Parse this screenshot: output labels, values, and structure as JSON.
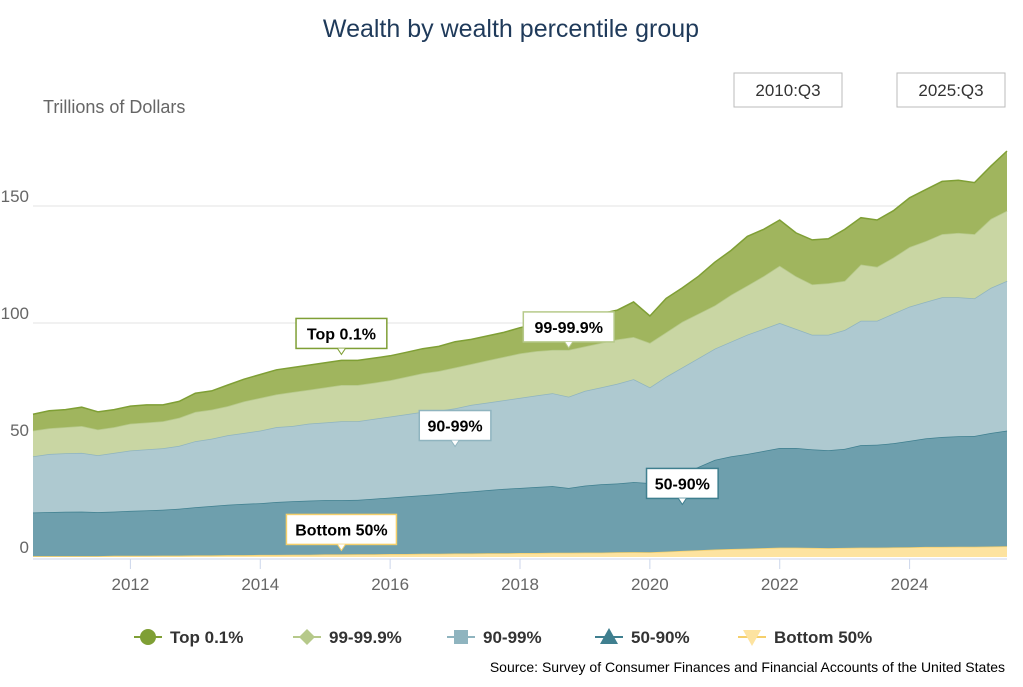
{
  "chart_data": {
    "type": "area",
    "stacked": true,
    "title": "Wealth by wealth percentile group",
    "ylabel": "Trillions of Dollars",
    "xlabel": "",
    "x_start": "2010:Q3",
    "x_end": "2025:Q3",
    "frequency": "quarterly",
    "ylim": [
      0,
      175
    ],
    "xlim": [
      2010.5,
      2025.5
    ],
    "y_ticks": [
      0,
      50,
      100,
      150
    ],
    "x_ticks": [
      2012,
      2014,
      2016,
      2018,
      2020,
      2022,
      2024
    ],
    "grid": "horizontal",
    "legend_position": "bottom",
    "range_selector": {
      "from": "2010:Q3",
      "to": "2025:Q3"
    },
    "source": "Source: Survey of Consumer Finances and Financial Accounts of the United States",
    "series": [
      {
        "name": "Bottom 50%",
        "color": "#fde3a0",
        "line": "#f5cf6b",
        "marker": "triangle-down",
        "annotation": {
          "label": "Bottom 50%",
          "at": 2015.25
        },
        "values": [
          0.4,
          0.4,
          0.4,
          0.4,
          0.4,
          0.5,
          0.5,
          0.5,
          0.6,
          0.6,
          0.7,
          0.7,
          0.8,
          0.8,
          0.9,
          0.9,
          1.0,
          1.0,
          1.1,
          1.1,
          1.2,
          1.2,
          1.3,
          1.3,
          1.4,
          1.4,
          1.5,
          1.5,
          1.6,
          1.6,
          1.7,
          1.7,
          1.8,
          1.8,
          1.9,
          1.9,
          2.0,
          2.1,
          2.0,
          2.3,
          2.6,
          2.9,
          3.2,
          3.4,
          3.6,
          3.8,
          4.0,
          4.0,
          3.9,
          3.8,
          3.9,
          4.0,
          4.0,
          4.1,
          4.2,
          4.3,
          4.3,
          4.4,
          4.4,
          4.5,
          4.6
        ]
      },
      {
        "name": "50-90%",
        "color": "#6e9fad",
        "line": "#3f7f8f",
        "marker": "triangle",
        "annotation": {
          "label": "50-90%",
          "at": 2020.5
        },
        "values": [
          18.6,
          18.8,
          18.9,
          19,
          18.8,
          18.9,
          19.2,
          19.4,
          19.6,
          20,
          20.6,
          21.1,
          21.5,
          21.9,
          22.1,
          22.6,
          22.8,
          23.1,
          23.2,
          23.2,
          23.2,
          23.7,
          24.1,
          24.6,
          25,
          25.5,
          26,
          26.5,
          27,
          27.5,
          27.8,
          28.2,
          28.5,
          27.7,
          28.6,
          29.2,
          29.4,
          29.9,
          29.6,
          31.2,
          32.9,
          35.6,
          38.3,
          39.6,
          40.4,
          41.5,
          42.6,
          42.6,
          42.1,
          41.8,
          42.3,
          43.8,
          44,
          44.5,
          45.4,
          46.4,
          47,
          47.2,
          47.3,
          48.5,
          49.4
        ]
      },
      {
        "name": "90-99%",
        "color": "#aec9d0",
        "line": "#8fb4bf",
        "marker": "square",
        "annotation": {
          "label": "90-99%",
          "at": 2017.0
        },
        "values": [
          24,
          24.8,
          25,
          25.1,
          24.3,
          25.1,
          25.8,
          26.1,
          26.3,
          26.9,
          28.2,
          28.7,
          29.7,
          30.3,
          31,
          32,
          32.2,
          32.9,
          33.2,
          33.7,
          33.6,
          34.1,
          34.6,
          35.1,
          35.6,
          35.6,
          36,
          37,
          37.4,
          37.9,
          38.5,
          39.1,
          39.7,
          39,
          40.5,
          41.4,
          42.6,
          44,
          40.9,
          43.5,
          45.5,
          46.5,
          47.5,
          49,
          51,
          52.2,
          53.4,
          50.9,
          49,
          49.4,
          50.8,
          53.2,
          53,
          55.4,
          57.4,
          58.3,
          59.7,
          59.4,
          58.8,
          62,
          64
        ]
      },
      {
        "name": "99-99.9%",
        "color": "#c9d6a3",
        "line": "#b6c98a",
        "marker": "diamond",
        "annotation": {
          "label": "99-99.9%",
          "at": 2018.75
        },
        "values": [
          11,
          11,
          11.2,
          11.5,
          11,
          11,
          11.5,
          11.5,
          11.5,
          12,
          12.5,
          12.5,
          12.5,
          13.5,
          14,
          14,
          14.5,
          14.5,
          15,
          15.5,
          15.5,
          15.5,
          15.5,
          16,
          16.5,
          17,
          17.5,
          17.5,
          18,
          18.5,
          19,
          19,
          18.5,
          20,
          19,
          19,
          19,
          18,
          19,
          19,
          19.5,
          19,
          18.5,
          20,
          21,
          22.5,
          24.5,
          22.5,
          21.5,
          22,
          21,
          24,
          23,
          24,
          25.5,
          26,
          27,
          27.5,
          27.5,
          29.5,
          30
        ]
      },
      {
        "name": "Top 0.1%",
        "color": "#a0b55e",
        "line": "#7f9f35",
        "marker": "circle",
        "annotation": {
          "label": "Top 0.1%",
          "at": 2015.25
        },
        "values": [
          7,
          7.5,
          7.5,
          8,
          7.5,
          7.5,
          7.5,
          7.5,
          7,
          7,
          8,
          8,
          9,
          9.5,
          10,
          10.5,
          10.5,
          10.5,
          10.5,
          10.5,
          10.5,
          10.5,
          10.5,
          10.5,
          10.5,
          10.5,
          11,
          10.5,
          10.5,
          10.5,
          11,
          11.5,
          12,
          12.5,
          12.5,
          12.5,
          12.5,
          15,
          11.5,
          14.5,
          14.5,
          16,
          18.5,
          19,
          21,
          20,
          19.5,
          18.5,
          19,
          19,
          22,
          20,
          20,
          20,
          21,
          22,
          22.5,
          22.5,
          22,
          22.5,
          25.5
        ]
      }
    ],
    "legend_order": [
      "Top 0.1%",
      "99-99.9%",
      "90-99%",
      "50-90%",
      "Bottom 50%"
    ]
  }
}
